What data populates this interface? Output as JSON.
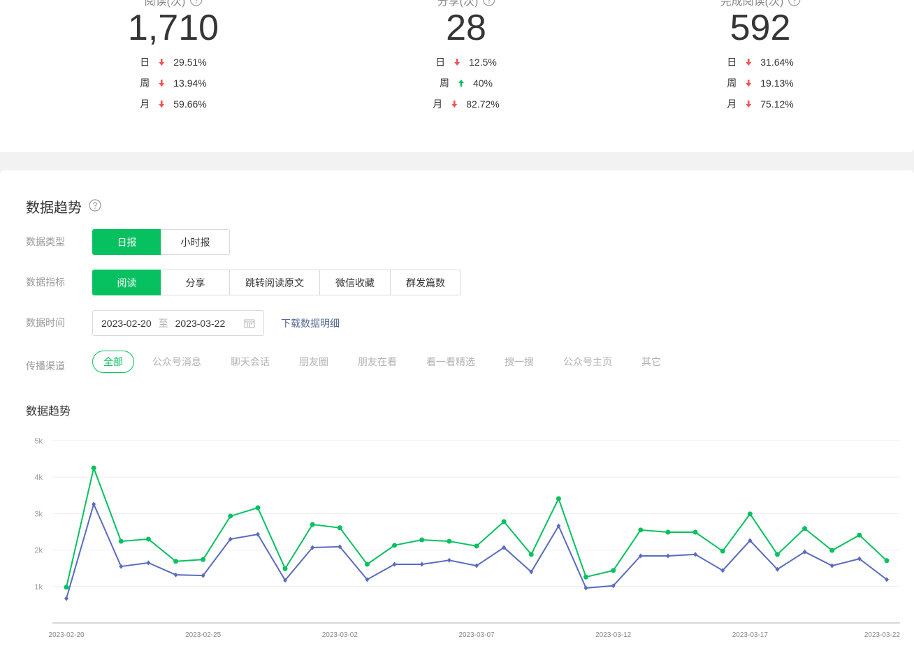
{
  "overview": [
    {
      "label": "阅读(次)",
      "value": "1,710",
      "changes": [
        {
          "period": "日",
          "direction": "down",
          "percent": "29.51%"
        },
        {
          "period": "周",
          "direction": "down",
          "percent": "13.94%"
        },
        {
          "period": "月",
          "direction": "down",
          "percent": "59.66%"
        }
      ]
    },
    {
      "label": "分享(次)",
      "value": "28",
      "changes": [
        {
          "period": "日",
          "direction": "down",
          "percent": "12.5%"
        },
        {
          "period": "周",
          "direction": "up",
          "percent": "40%"
        },
        {
          "period": "月",
          "direction": "down",
          "percent": "82.72%"
        }
      ]
    },
    {
      "label": "完成阅读(次)",
      "value": "592",
      "changes": [
        {
          "period": "日",
          "direction": "down",
          "percent": "31.64%"
        },
        {
          "period": "周",
          "direction": "down",
          "percent": "19.13%"
        },
        {
          "period": "月",
          "direction": "down",
          "percent": "75.12%"
        }
      ]
    }
  ],
  "trend": {
    "title": "数据趋势",
    "filters": [
      {
        "label": "数据类型",
        "options": [
          "日报",
          "小时报"
        ],
        "selected": 0
      },
      {
        "label": "数据指标",
        "options": [
          "阅读",
          "分享",
          "跳转阅读原文",
          "微信收藏",
          "群发篇数"
        ],
        "selected": 0
      }
    ],
    "date": {
      "label": "数据时间",
      "start": "2023-02-20",
      "separator": "至",
      "end": "2023-03-22",
      "download": "下载数据明细"
    },
    "channels": {
      "label": "传播渠道",
      "options": [
        "全部",
        "公众号消息",
        "聊天会话",
        "朋友圈",
        "朋友在看",
        "看一看精选",
        "搜一搜",
        "公众号主页",
        "其它"
      ],
      "selected": 0
    }
  },
  "chart_data": {
    "type": "line",
    "title": "数据趋势",
    "categories": [
      "2023-02-20",
      null,
      null,
      null,
      null,
      "2023-02-25",
      null,
      null,
      null,
      null,
      "2023-03-02",
      null,
      null,
      null,
      null,
      "2023-03-07",
      null,
      null,
      null,
      null,
      "2023-03-12",
      null,
      null,
      null,
      null,
      "2023-03-17",
      null,
      null,
      null,
      null,
      "2023-03-22"
    ],
    "series": [
      {
        "color": "#07c160",
        "marker": "circle",
        "values": [
          980,
          4250,
          2240,
          2300,
          1690,
          1740,
          2930,
          3160,
          1490,
          2700,
          2610,
          1610,
          2130,
          2280,
          2240,
          2110,
          2780,
          1880,
          3410,
          1260,
          1440,
          2550,
          2490,
          2490,
          1970,
          2990,
          1880,
          2590,
          1990,
          2410,
          1710
        ]
      },
      {
        "color": "#5b6bc0",
        "marker": "diamond",
        "values": [
          670,
          3260,
          1550,
          1650,
          1320,
          1300,
          2300,
          2430,
          1170,
          2070,
          2090,
          1190,
          1610,
          1610,
          1720,
          1570,
          2070,
          1400,
          2660,
          960,
          1020,
          1840,
          1840,
          1880,
          1440,
          2260,
          1470,
          1950,
          1570,
          1760,
          1190
        ]
      }
    ],
    "ylim": [
      0,
      5000
    ],
    "yticks": [
      {
        "value": 1000,
        "label": "1k"
      },
      {
        "value": 2000,
        "label": "2k"
      },
      {
        "value": 3000,
        "label": "3k"
      },
      {
        "value": 4000,
        "label": "4k"
      },
      {
        "value": 5000,
        "label": "5k"
      }
    ],
    "grid": true
  }
}
